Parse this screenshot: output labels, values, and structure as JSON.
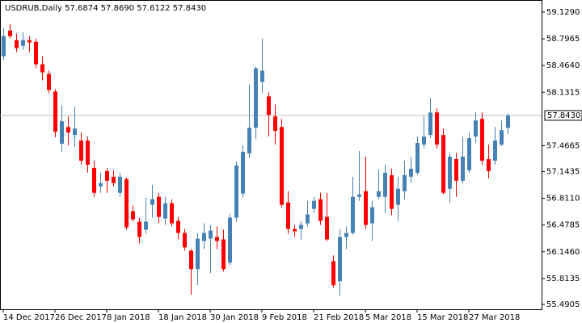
{
  "chart_data": {
    "type": "candlestick",
    "title": "USDRUB,Daily  57.6874 57.8690 57.6122 57.8430",
    "categories": [
      "14 Dec 2017",
      null,
      null,
      null,
      null,
      null,
      null,
      null,
      "26 Dec 2017",
      null,
      null,
      null,
      null,
      null,
      null,
      null,
      "8 Jan 2018",
      null,
      null,
      null,
      null,
      null,
      null,
      null,
      "18 Jan 2018",
      null,
      null,
      null,
      null,
      null,
      null,
      null,
      "30 Jan 2018",
      null,
      null,
      null,
      null,
      null,
      null,
      null,
      "9 Feb 2018",
      null,
      null,
      null,
      null,
      null,
      null,
      null,
      "21 Feb 2018",
      null,
      null,
      null,
      null,
      null,
      null,
      null,
      "5 Mar 2018",
      null,
      null,
      null,
      null,
      null,
      null,
      null,
      "15 Mar 2018",
      null,
      null,
      null,
      null,
      null,
      null,
      null,
      "27 Mar 2018",
      null,
      null,
      null,
      null,
      null,
      null
    ],
    "open": [
      58.58,
      58.9,
      58.78,
      58.71,
      58.78,
      58.76,
      58.48,
      58.36,
      58.14,
      57.49,
      57.7,
      57.6,
      57.53,
      57.53,
      57.19,
      56.96,
      57.15,
      57.08,
      56.88,
      57.05,
      56.65,
      56.52,
      56.42,
      56.73,
      56.83,
      56.56,
      56.75,
      56.53,
      56.38,
      56.16,
      55.93,
      56.28,
      56.31,
      56.33,
      56.3,
      56.01,
      56.57,
      56.87,
      57.37,
      57.69,
      58.26,
      58.08,
      57.83,
      57.7,
      56.76,
      56.43,
      56.43,
      56.5,
      56.68,
      56.8,
      56.58,
      56.03,
      55.78,
      56.33,
      56.38,
      56.83,
      56.9,
      56.5,
      56.83,
      56.83,
      57.1,
      56.73,
      56.9,
      57.08,
      57.13,
      57.48,
      57.6,
      57.88,
      57.6,
      56.93,
      57.3,
      57.03,
      57.16,
      57.58,
      57.8,
      57.3,
      57.28,
      57.48,
      57.6874
    ],
    "high": [
      58.93,
      58.98,
      58.86,
      58.88,
      58.83,
      58.8,
      58.58,
      58.4,
      58.17,
      57.97,
      57.83,
      57.95,
      57.63,
      57.58,
      57.28,
      57.13,
      57.19,
      57.16,
      57.13,
      57.07,
      56.72,
      56.57,
      56.82,
      56.98,
      56.88,
      56.83,
      56.8,
      56.58,
      56.43,
      56.18,
      56.38,
      56.5,
      56.48,
      56.46,
      56.42,
      56.62,
      57.27,
      57.47,
      58.23,
      58.45,
      58.8,
      58.13,
      57.98,
      57.8,
      56.9,
      56.48,
      56.53,
      56.78,
      56.83,
      56.88,
      56.88,
      56.1,
      56.43,
      56.46,
      57.08,
      57.4,
      57.33,
      56.78,
      57.17,
      57.23,
      57.18,
      57.08,
      57.28,
      57.33,
      57.58,
      57.83,
      58.06,
      57.93,
      57.68,
      57.38,
      57.38,
      57.58,
      57.63,
      57.88,
      57.88,
      57.48,
      57.7,
      57.78,
      57.869
    ],
    "low": [
      58.53,
      58.8,
      58.63,
      58.66,
      58.63,
      58.43,
      58.28,
      58.12,
      57.57,
      57.39,
      57.47,
      57.45,
      57.23,
      57.13,
      56.83,
      56.88,
      56.88,
      56.96,
      56.83,
      56.42,
      56.52,
      56.25,
      56.37,
      56.57,
      56.5,
      56.48,
      56.46,
      56.3,
      56.16,
      55.61,
      55.73,
      56.18,
      55.88,
      56.18,
      55.9,
      55.98,
      56.52,
      56.82,
      57.32,
      57.55,
      58.12,
      57.58,
      57.48,
      56.7,
      56.37,
      56.33,
      56.3,
      56.46,
      56.63,
      56.48,
      56.28,
      55.7,
      55.6,
      56.18,
      56.36,
      56.78,
      56.43,
      56.28,
      56.8,
      56.63,
      56.6,
      56.53,
      56.8,
      57.0,
      57.1,
      57.43,
      57.56,
      57.43,
      56.86,
      56.76,
      56.83,
      57.0,
      57.13,
      57.5,
      57.23,
      57.06,
      57.23,
      57.46,
      57.6122
    ],
    "close": [
      58.83,
      58.83,
      58.68,
      58.78,
      58.75,
      58.48,
      58.38,
      58.16,
      57.64,
      57.77,
      57.63,
      57.68,
      57.28,
      57.23,
      56.88,
      57.0,
      57.03,
      57.0,
      57.08,
      56.45,
      56.55,
      56.33,
      56.52,
      56.8,
      56.58,
      56.75,
      56.5,
      56.38,
      56.2,
      55.93,
      56.31,
      56.38,
      56.41,
      56.28,
      55.93,
      56.57,
      57.22,
      57.39,
      57.69,
      58.43,
      58.4,
      57.85,
      57.65,
      56.73,
      56.43,
      56.4,
      56.48,
      56.61,
      56.78,
      56.53,
      56.3,
      55.73,
      56.33,
      56.38,
      56.83,
      56.86,
      56.48,
      56.7,
      56.9,
      57.13,
      56.68,
      56.93,
      57.1,
      57.18,
      57.5,
      57.58,
      57.88,
      57.48,
      56.88,
      57.33,
      57.03,
      57.33,
      57.56,
      57.78,
      57.28,
      57.15,
      57.53,
      57.66,
      57.843
    ],
    "up_color": "#4682b4",
    "down_color": "#ff0000",
    "ylim": [
      55.43,
      59.28
    ],
    "yticks": [
      {
        "value": 59.129,
        "label": "59.1290"
      },
      {
        "value": 58.7965,
        "label": "58.7965"
      },
      {
        "value": 58.464,
        "label": "58.4640"
      },
      {
        "value": 58.1315,
        "label": "58.1315"
      },
      {
        "value": 57.4665,
        "label": "57.4665"
      },
      {
        "value": 57.1435,
        "label": "57.1435"
      },
      {
        "value": 56.811,
        "label": "56.8110"
      },
      {
        "value": 56.4785,
        "label": "56.4785"
      },
      {
        "value": 56.146,
        "label": "56.1460"
      },
      {
        "value": 55.8135,
        "label": "55.8135"
      },
      {
        "value": 55.4905,
        "label": "55.4905"
      }
    ],
    "current": {
      "value": 57.843,
      "label": "57.8430"
    }
  }
}
